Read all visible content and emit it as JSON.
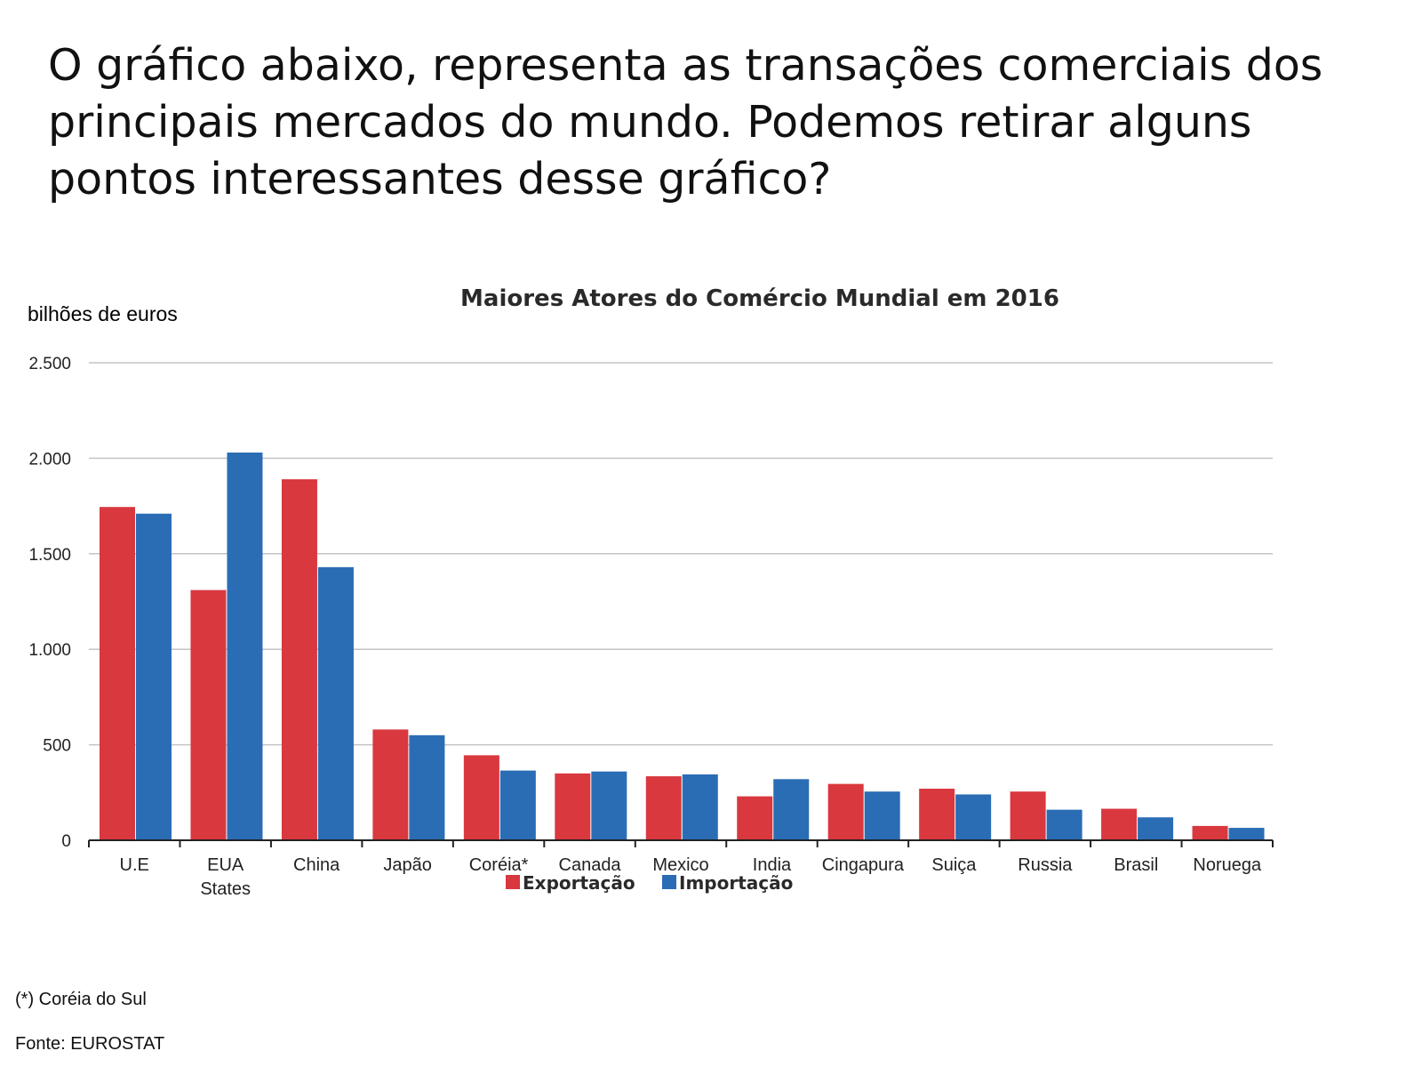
{
  "slide": {
    "question": "O gráfico abaixo, representa as transações comerciais dos principais mercados do mundo. Podemos retirar alguns pontos interessantes desse gráfico?",
    "footnote": "(*) Coréia do Sul",
    "source": "Fonte: EUROSTAT"
  },
  "chart_data": {
    "type": "bar",
    "title": "Maiores Atores do Comércio Mundial em 2016",
    "ylabel": "bilhões de euros",
    "xlabel": "",
    "ylim": [
      0,
      2500
    ],
    "yticks": [
      0,
      500,
      1000,
      1500,
      2000,
      2500
    ],
    "ytick_labels": [
      "0",
      "500",
      "1.000",
      "1.500",
      "2.000",
      "2.500"
    ],
    "grid": true,
    "legend_position": "bottom",
    "categories": [
      "U.E",
      "EUA States",
      "China",
      "Japão",
      "Coréia*",
      "Canada",
      "Mexico",
      "India",
      "Cingapura",
      "Suiça",
      "Russia",
      "Brasil",
      "Noruega"
    ],
    "category_lines": [
      [
        "U.E"
      ],
      [
        "EUA",
        "States"
      ],
      [
        "China"
      ],
      [
        "Japão"
      ],
      [
        "Coréia*"
      ],
      [
        "Canada"
      ],
      [
        "Mexico"
      ],
      [
        "India"
      ],
      [
        "Cingapura"
      ],
      [
        "Suiça"
      ],
      [
        "Russia"
      ],
      [
        "Brasil"
      ],
      [
        "Noruega"
      ]
    ],
    "series": [
      {
        "name": "Exportação",
        "color": "#d9383f",
        "values": [
          1745,
          1310,
          1890,
          580,
          445,
          350,
          335,
          230,
          295,
          270,
          255,
          165,
          75
        ]
      },
      {
        "name": "Importação",
        "color": "#2a6db5",
        "values": [
          1710,
          2030,
          1430,
          550,
          365,
          360,
          345,
          320,
          255,
          240,
          160,
          120,
          65
        ]
      }
    ]
  }
}
